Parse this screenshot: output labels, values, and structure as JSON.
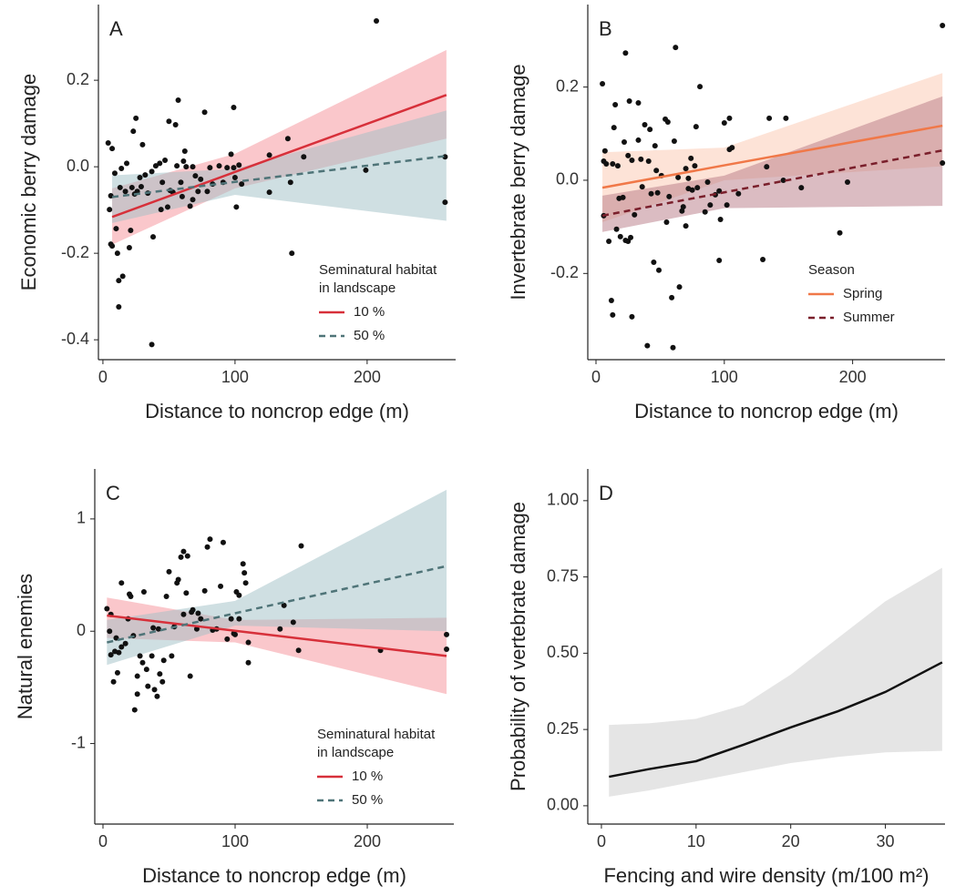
{
  "chart_data": [
    {
      "type": "scatter",
      "panel_label": "A",
      "xlabel": "Distance to noncrop edge (m)",
      "ylabel": "Economic berry damage",
      "xlim": [
        -3.4,
        267
      ],
      "ylim": [
        -0.446,
        0.375
      ],
      "xticks": [
        0,
        100,
        200
      ],
      "yticks": [
        -0.4,
        -0.2,
        {
          "value": 0,
          "label": "0.0"
        },
        0.2
      ],
      "point_color": "#111111",
      "points": {
        "x": [
          4,
          7,
          6,
          5,
          6,
          7,
          9,
          10,
          11,
          12,
          12,
          15,
          13,
          14,
          17,
          18,
          20,
          21,
          22,
          23,
          24,
          25,
          26,
          28,
          29,
          30,
          32,
          34,
          37,
          38,
          40,
          43,
          44,
          45,
          47,
          49,
          50,
          51,
          53,
          55,
          56,
          57,
          37,
          59,
          60,
          61,
          62,
          63,
          66,
          68,
          68,
          70,
          72,
          74,
          77,
          79,
          81,
          83,
          88,
          91,
          94,
          97,
          99,
          99,
          100,
          101,
          103,
          105,
          126,
          126,
          140,
          142,
          143,
          152,
          199,
          207,
          259,
          259
        ],
        "y": [
          0.055,
          0.042,
          -0.067,
          -0.099,
          -0.179,
          -0.183,
          -0.015,
          -0.143,
          -0.2,
          -0.263,
          -0.324,
          -0.253,
          -0.048,
          -0.004,
          -0.057,
          0.008,
          -0.187,
          -0.147,
          -0.048,
          0.082,
          -0.063,
          0.112,
          -0.057,
          -0.025,
          -0.046,
          0.051,
          -0.019,
          -0.061,
          -0.011,
          -0.162,
          0.002,
          0.008,
          -0.099,
          -0.036,
          0.015,
          -0.093,
          0.105,
          -0.055,
          -0.059,
          0.097,
          0.002,
          0.154,
          -0.411,
          -0.036,
          -0.069,
          0.013,
          0.036,
          0,
          -0.091,
          -0.076,
          0,
          -0.021,
          -0.057,
          -0.029,
          0.126,
          -0.057,
          -0.002,
          -0.04,
          0.002,
          -0.036,
          -0.002,
          0.029,
          -0.002,
          0.137,
          -0.025,
          -0.093,
          0.004,
          -0.04,
          -0.059,
          0.027,
          0.065,
          -0.036,
          -0.2,
          0.023,
          -0.008,
          0.337,
          0.023,
          -0.082
        ]
      },
      "legend": "bottom-right",
      "legend_title": [
        "Seminatural habitat",
        "in landscape"
      ],
      "series": [
        {
          "name": "10 %",
          "color": "#d7303a",
          "dashed": false,
          "band_color": "#f58f98",
          "x": [
            7,
            100,
            260
          ],
          "values": [
            -0.116,
            -0.012,
            0.166
          ],
          "lower": [
            -0.18,
            -0.05,
            0.065
          ],
          "upper": [
            -0.05,
            0.03,
            0.27
          ]
        },
        {
          "name": "50 %",
          "color": "#4f7478",
          "dashed": true,
          "band_color": "#9fc0c5",
          "x": [
            7,
            100,
            260
          ],
          "values": [
            -0.07,
            -0.035,
            0.025
          ],
          "lower": [
            -0.13,
            -0.065,
            -0.125
          ],
          "upper": [
            -0.02,
            -0.005,
            0.13
          ]
        }
      ]
    },
    {
      "type": "scatter",
      "panel_label": "B",
      "xlabel": "Distance to noncrop edge (m)",
      "ylabel": "Invertebrate berry damage",
      "xlim": [
        -6.4,
        272
      ],
      "ylim": [
        -0.385,
        0.377
      ],
      "xticks": [
        0,
        100,
        200
      ],
      "yticks": [
        -0.2,
        {
          "value": 0,
          "label": "0.0"
        },
        0.2
      ],
      "point_color": "#111111",
      "points": {
        "x": [
          5,
          6,
          6,
          7,
          8,
          10,
          12,
          13,
          13,
          14,
          15,
          16,
          17,
          18,
          19,
          21,
          22,
          23,
          23,
          25,
          25,
          26,
          27,
          28,
          28,
          30,
          33,
          33,
          35,
          36,
          38,
          40,
          41,
          42,
          43,
          45,
          46,
          47,
          48,
          49,
          51,
          54,
          55,
          56,
          57,
          59,
          60,
          61,
          62,
          64,
          65,
          67,
          68,
          70,
          70,
          72,
          72,
          74,
          75,
          77,
          78,
          79,
          81,
          85,
          87,
          89,
          93,
          96,
          96,
          97,
          100,
          102,
          104,
          104,
          106,
          111,
          130,
          133,
          135,
          146,
          148,
          160,
          190,
          196,
          270,
          270
        ],
        "y": [
          0.207,
          0.041,
          -0.076,
          0.063,
          0.035,
          -0.131,
          -0.258,
          0.035,
          -0.289,
          0.113,
          0.162,
          -0.105,
          0.031,
          -0.039,
          -0.121,
          -0.037,
          0.082,
          -0.129,
          0.273,
          -0.131,
          0.053,
          0.17,
          -0.123,
          0.043,
          -0.293,
          -0.074,
          0.086,
          0.166,
          0.045,
          -0.014,
          0.119,
          -0.355,
          0.041,
          0.109,
          -0.029,
          -0.176,
          0.074,
          0.021,
          -0.027,
          -0.193,
          0.01,
          0.131,
          -0.09,
          0.125,
          -0.035,
          -0.252,
          -0.359,
          0.084,
          0.285,
          0.006,
          -0.229,
          -0.066,
          -0.057,
          -0.098,
          0.025,
          0.004,
          -0.018,
          0.047,
          -0.021,
          0.031,
          0.115,
          -0.016,
          0.201,
          -0.068,
          -0.004,
          -0.053,
          -0.031,
          -0.172,
          -0.023,
          -0.084,
          0.123,
          -0.053,
          0.133,
          0.066,
          0.07,
          -0.029,
          -0.17,
          0.029,
          0.133,
          0,
          0.133,
          -0.016,
          -0.113,
          -0.004,
          0.332,
          0.037
        ]
      },
      "legend": "bottom-right",
      "legend_title": [
        "Season"
      ],
      "series": [
        {
          "name": "Spring",
          "color": "#f07848",
          "dashed": false,
          "band_color": "#fcc8b0",
          "x": [
            5,
            100,
            270
          ],
          "values": [
            -0.016,
            0.032,
            0.117
          ],
          "lower": [
            -0.09,
            0.0,
            0.03
          ],
          "upper": [
            0.06,
            0.07,
            0.23
          ]
        },
        {
          "name": "Summer",
          "color": "#7a1f2b",
          "dashed": true,
          "band_color": "#b87a86",
          "x": [
            5,
            100,
            270
          ],
          "values": [
            -0.076,
            -0.026,
            0.064
          ],
          "lower": [
            -0.111,
            -0.06,
            -0.055
          ],
          "upper": [
            -0.033,
            0.01,
            0.18
          ]
        }
      ]
    },
    {
      "type": "scatter",
      "panel_label": "C",
      "xlabel": "Distance to noncrop edge (m)",
      "ylabel": "Natural enemies",
      "xlim": [
        -6.2,
        265.5
      ],
      "ylim": [
        -1.717,
        1.445
      ],
      "xticks": [
        0,
        100,
        200
      ],
      "yticks": [
        -1,
        0,
        1
      ],
      "point_color": "#111111",
      "points": {
        "x": [
          3,
          5,
          6,
          6,
          8,
          9,
          10,
          11,
          12,
          14,
          14,
          17,
          19,
          20,
          21,
          23,
          24,
          26,
          26,
          28,
          30,
          31,
          33,
          34,
          37,
          38,
          39,
          41,
          42,
          43,
          45,
          46,
          48,
          50,
          52,
          54,
          56,
          57,
          59,
          61,
          61,
          63,
          64,
          66,
          67,
          68,
          71,
          72,
          74,
          77,
          79,
          81,
          83,
          86,
          89,
          91,
          94,
          97,
          99,
          100,
          101,
          103,
          103,
          106,
          107,
          108,
          110,
          110,
          134,
          137,
          144,
          148,
          150,
          210,
          260,
          260
        ],
        "y": [
          0.2,
          0,
          -0.21,
          0.15,
          -0.45,
          -0.18,
          -0.06,
          -0.37,
          -0.19,
          0.43,
          -0.14,
          -0.11,
          0.11,
          0.33,
          0.31,
          -0.04,
          -0.7,
          -0.4,
          -0.56,
          -0.22,
          -0.28,
          0.35,
          -0.34,
          -0.49,
          -0.22,
          0.03,
          -0.52,
          -0.58,
          0.02,
          -0.38,
          -0.45,
          -0.26,
          0.31,
          0.53,
          -0.22,
          0.04,
          0.43,
          0.46,
          0.66,
          0.71,
          0.15,
          0.34,
          0.67,
          -0.4,
          0.17,
          0.19,
          0.02,
          0.16,
          0.11,
          0.36,
          0.75,
          0.82,
          0.01,
          0.02,
          0.4,
          0.79,
          -0.07,
          0.11,
          -0.02,
          -0.03,
          0.35,
          0.32,
          0.11,
          0.6,
          0.52,
          0.43,
          -0.28,
          -0.1,
          0.02,
          0.23,
          0.08,
          -0.17,
          0.76,
          -0.17,
          -0.03,
          -0.16
        ]
      },
      "legend": "bottom-right",
      "legend_title": [
        "Seminatural habitat",
        "in landscape"
      ],
      "series": [
        {
          "name": "10 %",
          "color": "#d7303a",
          "dashed": false,
          "band_color": "#f58f98",
          "x": [
            3,
            100,
            260
          ],
          "values": [
            0.14,
            0.004,
            -0.22
          ],
          "lower": [
            -0.06,
            -0.1,
            -0.56
          ],
          "upper": [
            0.3,
            0.1,
            0.12
          ]
        },
        {
          "name": "50 %",
          "color": "#4f7478",
          "dashed": true,
          "band_color": "#9fc0c5",
          "x": [
            3,
            100,
            260
          ],
          "values": [
            -0.1,
            0.16,
            0.58
          ],
          "lower": [
            -0.3,
            0.05,
            0.0
          ],
          "upper": [
            0.1,
            0.27,
            1.26
          ]
        }
      ]
    },
    {
      "type": "line",
      "panel_label": "D",
      "xlabel": "Fencing and wire density (m/100 m²)",
      "ylabel": "Probability of vertebrate damage",
      "xlim": [
        -1.44,
        36.3
      ],
      "ylim": [
        -0.06,
        1.104
      ],
      "xticks": [
        0,
        10,
        20,
        30
      ],
      "yticks": [
        {
          "value": 0,
          "label": "0.00"
        },
        {
          "value": 0.25,
          "label": "0.25"
        },
        {
          "value": 0.5,
          "label": "0.50"
        },
        {
          "value": 0.75,
          "label": "0.75"
        },
        {
          "value": 1,
          "label": "1.00"
        }
      ],
      "series": [
        {
          "color": "#111111",
          "dashed": false,
          "band_color": "#cccccc",
          "x": [
            0.8,
            5,
            10,
            15,
            20,
            25,
            30,
            36
          ],
          "values": [
            0.095,
            0.12,
            0.146,
            0.2,
            0.257,
            0.31,
            0.373,
            0.47
          ],
          "lower": [
            0.03,
            0.05,
            0.08,
            0.11,
            0.14,
            0.16,
            0.175,
            0.18
          ],
          "upper": [
            0.265,
            0.27,
            0.285,
            0.33,
            0.43,
            0.55,
            0.67,
            0.78
          ]
        }
      ]
    }
  ]
}
